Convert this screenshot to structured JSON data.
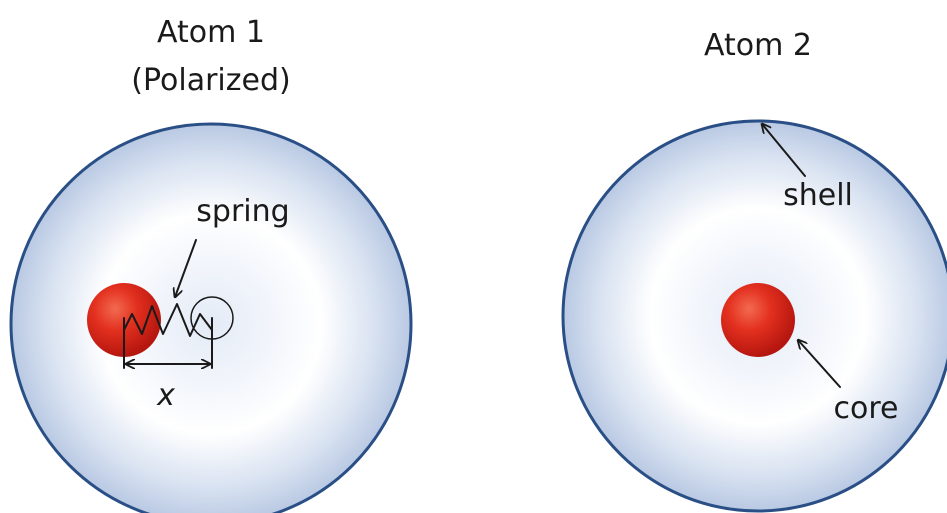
{
  "atom1": {
    "title_line1": "Atom 1",
    "title_line2": "(Polarized)",
    "spring_label": "spring",
    "displacement_label": "x"
  },
  "atom2": {
    "title": "Atom 2",
    "shell_label": "shell",
    "core_label": "core"
  },
  "colors": {
    "shell_stroke": "#2a4f86",
    "shell_fill_edge": "#b9c9e3",
    "shell_fill_mid": "#ffffff",
    "core_color": "#e0241b"
  }
}
